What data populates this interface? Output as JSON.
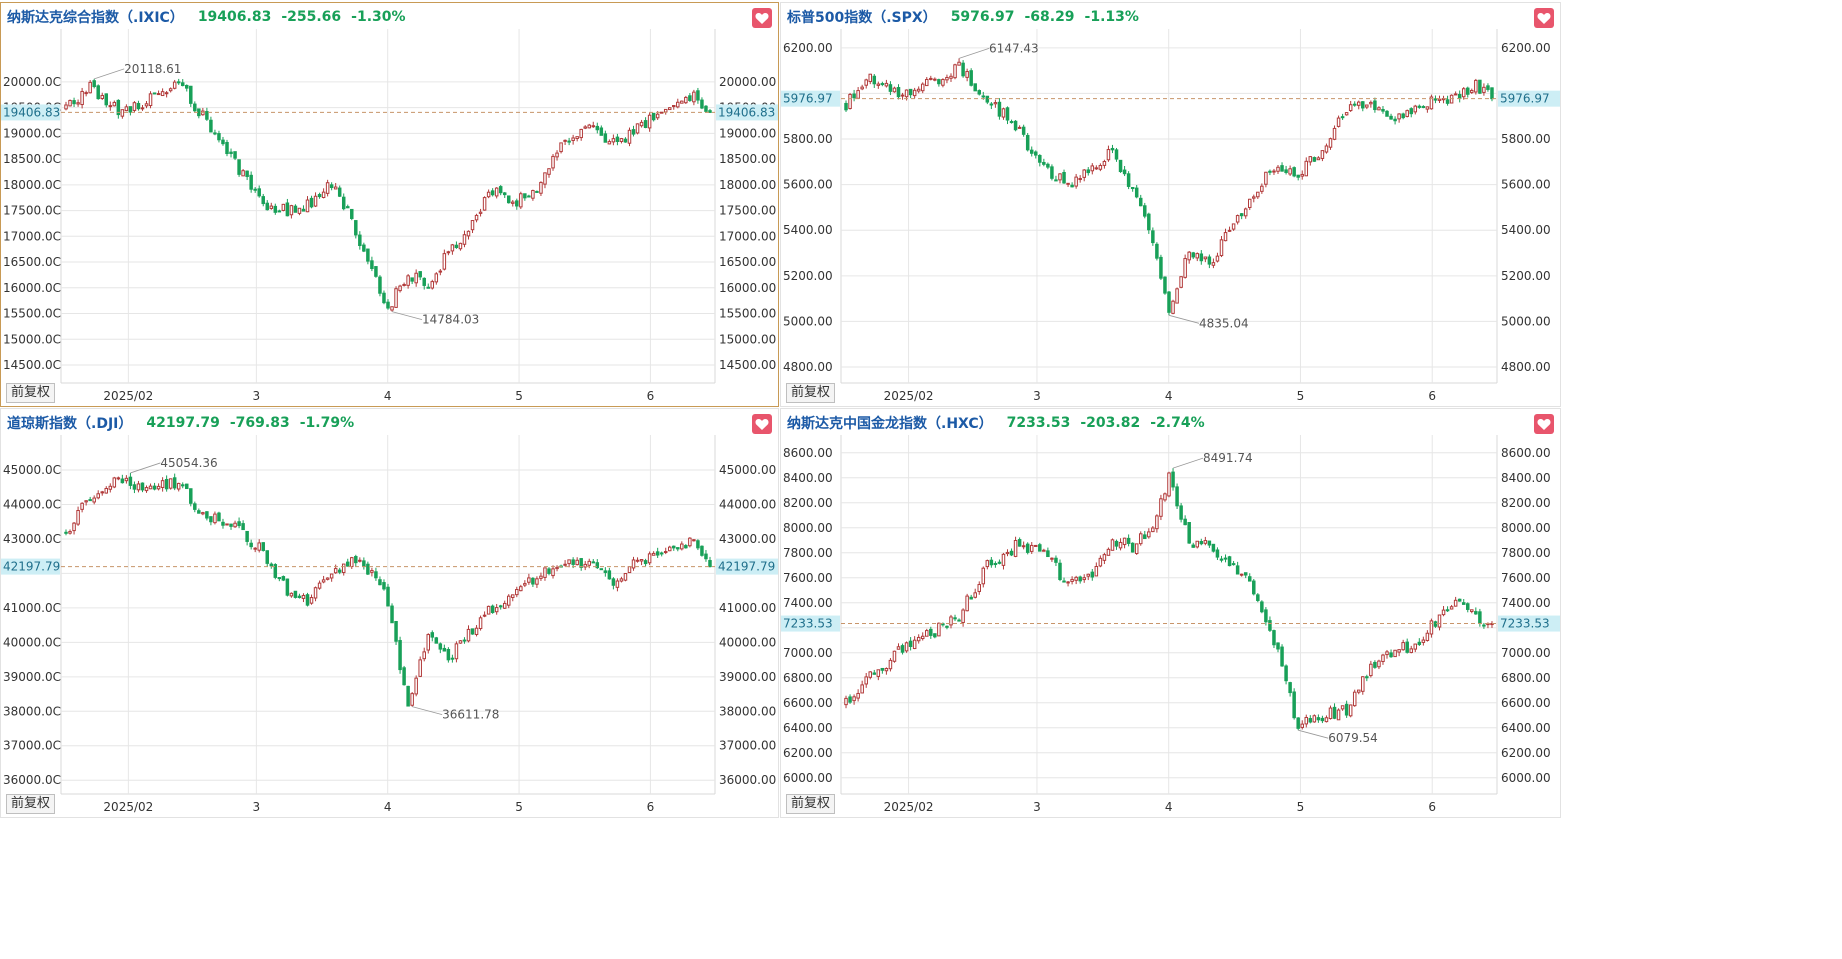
{
  "adjust_label": "前复权",
  "colors": {
    "up": "#b23a3a",
    "down": "#18a058",
    "dashed": "#c8956a",
    "price_tag_bg": "#cdeef5",
    "grid": "#e6e6e6"
  },
  "panels": [
    {
      "name": "纳斯达克综合指数（.IXIC）",
      "price": "19406.83",
      "change": "-255.66",
      "pct": "-1.30%",
      "selected": true,
      "chart_data": {
        "type": "candlestick",
        "last": 19406.83,
        "ylim": [
          14150,
          20950
        ],
        "yticks": [
          20000,
          19500,
          19000,
          18500,
          18000,
          17500,
          17000,
          16500,
          16000,
          15500,
          15000,
          14500
        ],
        "ytick_labels_left": [
          "20000.0C",
          "19500.0C",
          "19000.0C",
          "18500.0C",
          "18000.0C",
          "17500.0C",
          "17000.0C",
          "16500.0C",
          "16000.0C",
          "15500.0C",
          "15000.0C",
          "14500.0C"
        ],
        "ytick_labels_right": [
          "20000.00",
          "19500.00",
          "19000.00",
          "18500.00",
          "18000.00",
          "17500.00",
          "17000.00",
          "16500.00",
          "16000.00",
          "15500.00",
          "15000.00",
          "14500.00"
        ],
        "xticks": [
          {
            "pos": 0.1,
            "label": "2025/02"
          },
          {
            "pos": 0.29,
            "label": "3"
          },
          {
            "pos": 0.485,
            "label": "4"
          },
          {
            "pos": 0.68,
            "label": "5"
          },
          {
            "pos": 0.875,
            "label": "6"
          }
        ],
        "high_label": "20118.61",
        "low_label": "14784.03",
        "anchors": [
          [
            0,
            19500
          ],
          [
            6,
            19900
          ],
          [
            13,
            19450
          ],
          [
            21,
            19650
          ],
          [
            28,
            20000
          ],
          [
            35,
            19200
          ],
          [
            42,
            18400
          ],
          [
            49,
            17600
          ],
          [
            55,
            17500
          ],
          [
            60,
            17600
          ],
          [
            66,
            18000
          ],
          [
            71,
            17300
          ],
          [
            76,
            16400
          ],
          [
            80,
            15600
          ],
          [
            85,
            16300
          ],
          [
            90,
            16000
          ],
          [
            95,
            16700
          ],
          [
            100,
            17100
          ],
          [
            106,
            17900
          ],
          [
            112,
            17700
          ],
          [
            118,
            18000
          ],
          [
            124,
            18900
          ],
          [
            130,
            19100
          ],
          [
            136,
            18800
          ],
          [
            142,
            19100
          ],
          [
            150,
            19500
          ],
          [
            156,
            19700
          ],
          [
            160,
            19406.83
          ]
        ],
        "n": 161
      }
    },
    {
      "name": "标普500指数（.SPX）",
      "price": "5976.97",
      "change": "-68.29",
      "pct": "-1.13%",
      "selected": false,
      "chart_data": {
        "type": "candlestick",
        "last": 5976.97,
        "ylim": [
          4730,
          6265
        ],
        "yticks": [
          6200,
          6000,
          5800,
          5600,
          5400,
          5200,
          5000,
          4800
        ],
        "ytick_labels_left": [
          "6200.00",
          "",
          "5800.00",
          "5600.00",
          "5400.00",
          "5200.00",
          "5000.00",
          "4800.00"
        ],
        "ytick_labels_right": [
          "6200.00",
          "",
          "5800.00",
          "5600.00",
          "5400.00",
          "5200.00",
          "5000.00",
          "4800.00"
        ],
        "xticks": [
          {
            "pos": 0.1,
            "label": "2025/02"
          },
          {
            "pos": 0.29,
            "label": "3"
          },
          {
            "pos": 0.485,
            "label": "4"
          },
          {
            "pos": 0.68,
            "label": "5"
          },
          {
            "pos": 0.875,
            "label": "6"
          }
        ],
        "high_label": "6147.43",
        "low_label": "4835.04",
        "anchors": [
          [
            0,
            5950
          ],
          [
            6,
            6080
          ],
          [
            13,
            5990
          ],
          [
            21,
            6050
          ],
          [
            28,
            6110
          ],
          [
            35,
            5980
          ],
          [
            42,
            5850
          ],
          [
            49,
            5680
          ],
          [
            55,
            5600
          ],
          [
            60,
            5650
          ],
          [
            66,
            5760
          ],
          [
            71,
            5570
          ],
          [
            76,
            5350
          ],
          [
            80,
            5050
          ],
          [
            85,
            5300
          ],
          [
            90,
            5250
          ],
          [
            95,
            5400
          ],
          [
            100,
            5550
          ],
          [
            106,
            5680
          ],
          [
            112,
            5650
          ],
          [
            118,
            5750
          ],
          [
            124,
            5930
          ],
          [
            130,
            5950
          ],
          [
            136,
            5880
          ],
          [
            142,
            5950
          ],
          [
            150,
            5980
          ],
          [
            156,
            6040
          ],
          [
            160,
            5976.97
          ]
        ],
        "n": 161
      }
    },
    {
      "name": "道琼斯指数（.DJI）",
      "price": "42197.79",
      "change": "-769.83",
      "pct": "-1.79%",
      "selected": false,
      "chart_data": {
        "type": "candlestick",
        "last": 42197.79,
        "ylim": [
          35600,
          45900
        ],
        "yticks": [
          45000,
          44000,
          43000,
          42000,
          41000,
          40000,
          39000,
          38000,
          37000,
          36000
        ],
        "ytick_labels_left": [
          "45000.0C",
          "44000.0C",
          "43000.0C",
          "",
          "41000.0C",
          "40000.0C",
          "39000.0C",
          "38000.0C",
          "37000.0C",
          "36000.0C"
        ],
        "ytick_labels_right": [
          "45000.00",
          "44000.00",
          "43000.00",
          "",
          "41000.00",
          "40000.00",
          "39000.00",
          "38000.00",
          "37000.00",
          "36000.00"
        ],
        "xticks": [
          {
            "pos": 0.1,
            "label": "2025/02"
          },
          {
            "pos": 0.29,
            "label": "3"
          },
          {
            "pos": 0.485,
            "label": "4"
          },
          {
            "pos": 0.68,
            "label": "5"
          },
          {
            "pos": 0.875,
            "label": "6"
          }
        ],
        "high_label": "45054.36",
        "low_label": "36611.78",
        "anchors": [
          [
            0,
            43200
          ],
          [
            6,
            44200
          ],
          [
            13,
            44700
          ],
          [
            21,
            44500
          ],
          [
            28,
            44600
          ],
          [
            35,
            43600
          ],
          [
            42,
            43400
          ],
          [
            49,
            42600
          ],
          [
            55,
            41500
          ],
          [
            60,
            41200
          ],
          [
            66,
            42000
          ],
          [
            71,
            42300
          ],
          [
            76,
            42100
          ],
          [
            80,
            41200
          ],
          [
            85,
            38000
          ],
          [
            90,
            40200
          ],
          [
            95,
            39500
          ],
          [
            100,
            40200
          ],
          [
            106,
            41000
          ],
          [
            112,
            41600
          ],
          [
            118,
            42000
          ],
          [
            124,
            42400
          ],
          [
            130,
            42300
          ],
          [
            136,
            41800
          ],
          [
            142,
            42300
          ],
          [
            150,
            42600
          ],
          [
            156,
            42900
          ],
          [
            160,
            42197.79
          ]
        ],
        "n": 161
      }
    },
    {
      "name": "纳斯达克中国金龙指数（.HXC）",
      "price": "7233.53",
      "change": "-203.82",
      "pct": "-2.74%",
      "selected": false,
      "chart_data": {
        "type": "candlestick",
        "last": 7233.53,
        "ylim": [
          5870,
          8710
        ],
        "yticks": [
          8600,
          8400,
          8200,
          8000,
          7800,
          7600,
          7400,
          7200,
          7000,
          6800,
          6600,
          6400,
          6200,
          6000
        ],
        "ytick_labels_left": [
          "8600.00",
          "8400.00",
          "8200.00",
          "8000.00",
          "7800.00",
          "7600.00",
          "7400.00",
          "",
          "7000.00",
          "6800.00",
          "6600.00",
          "6400.00",
          "6200.00",
          "6000.00"
        ],
        "ytick_labels_right": [
          "8600.00",
          "8400.00",
          "8200.00",
          "8000.00",
          "7800.00",
          "7600.00",
          "7400.00",
          "",
          "7000.00",
          "6800.00",
          "6600.00",
          "6400.00",
          "6200.00",
          "6000.00"
        ],
        "xticks": [
          {
            "pos": 0.1,
            "label": "2025/02"
          },
          {
            "pos": 0.29,
            "label": "3"
          },
          {
            "pos": 0.485,
            "label": "4"
          },
          {
            "pos": 0.68,
            "label": "5"
          },
          {
            "pos": 0.875,
            "label": "6"
          }
        ],
        "high_label": "8491.74",
        "low_label": "6079.54",
        "anchors": [
          [
            0,
            6600
          ],
          [
            6,
            6800
          ],
          [
            13,
            7000
          ],
          [
            21,
            7150
          ],
          [
            28,
            7300
          ],
          [
            35,
            7700
          ],
          [
            42,
            7850
          ],
          [
            49,
            7800
          ],
          [
            55,
            7550
          ],
          [
            60,
            7600
          ],
          [
            66,
            7900
          ],
          [
            71,
            7850
          ],
          [
            76,
            8000
          ],
          [
            80,
            8400
          ],
          [
            85,
            7900
          ],
          [
            90,
            7850
          ],
          [
            95,
            7700
          ],
          [
            100,
            7550
          ],
          [
            106,
            7100
          ],
          [
            112,
            6400
          ],
          [
            118,
            6500
          ],
          [
            124,
            6550
          ],
          [
            130,
            6900
          ],
          [
            136,
            7000
          ],
          [
            142,
            7100
          ],
          [
            150,
            7400
          ],
          [
            156,
            7300
          ],
          [
            160,
            7233.53
          ]
        ],
        "n": 161
      }
    }
  ]
}
